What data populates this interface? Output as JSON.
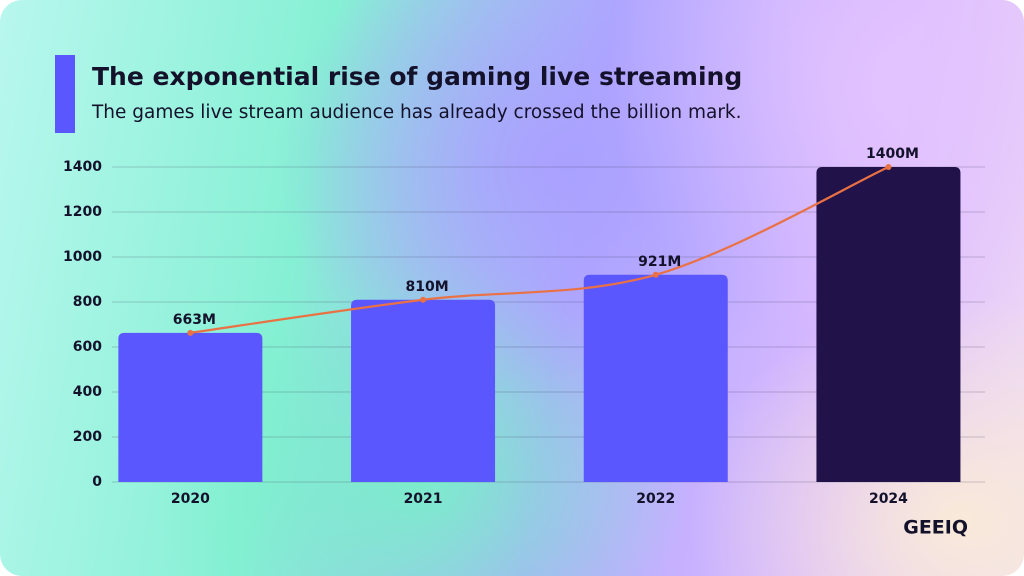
{
  "chart_data": {
    "type": "bar",
    "title": "The exponential rise of gaming live streaming",
    "subtitle": "The games live stream audience has already crossed the billion mark.",
    "categories": [
      "2020",
      "2021",
      "2022",
      "2024"
    ],
    "values": [
      663,
      810,
      921,
      1400
    ],
    "value_labels": [
      "663M",
      "810M",
      "921M",
      "1400M"
    ],
    "colors": [
      "#5b57ff",
      "#5b57ff",
      "#5b57ff",
      "#22124a"
    ],
    "line_color": "#ea7144",
    "ylim": [
      0,
      1400
    ],
    "yticks": [
      0,
      200,
      400,
      600,
      800,
      1000,
      1200,
      1400
    ],
    "grid": true,
    "brand": "GEEIQ"
  }
}
